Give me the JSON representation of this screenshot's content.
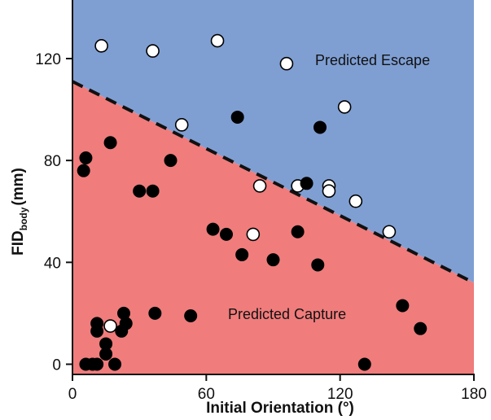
{
  "chart_data": {
    "type": "scatter",
    "title": "",
    "xlabel": "Initial Orientation (°)",
    "ylabel_main": "FID",
    "ylabel_sub": "body",
    "ylabel_unit": "(mm)",
    "xlim": [
      0,
      180
    ],
    "ylim": [
      -4,
      143
    ],
    "xticks": [
      0,
      60,
      120,
      180
    ],
    "yticks": [
      0,
      40,
      80,
      120
    ],
    "grid": false,
    "regions": [
      {
        "name": "Predicted Escape",
        "color": "#7f9fd3"
      },
      {
        "name": "Predicted Capture",
        "color": "#f07c7c"
      }
    ],
    "boundary": {
      "x": [
        0,
        180
      ],
      "y": [
        111,
        32
      ],
      "style": "dashed"
    },
    "series": [
      {
        "marker": "open-circle",
        "points": [
          [
            13,
            125
          ],
          [
            36,
            123
          ],
          [
            65,
            127
          ],
          [
            96,
            118
          ],
          [
            49,
            94
          ],
          [
            122,
            101
          ],
          [
            84,
            70
          ],
          [
            101,
            70
          ],
          [
            115,
            70
          ],
          [
            115,
            68
          ],
          [
            127,
            64
          ],
          [
            142,
            52
          ],
          [
            81,
            51
          ],
          [
            17,
            15
          ]
        ]
      },
      {
        "marker": "filled-circle",
        "points": [
          [
            74,
            97
          ],
          [
            111,
            93
          ],
          [
            17,
            87
          ],
          [
            6,
            81
          ],
          [
            5,
            76
          ],
          [
            44,
            80
          ],
          [
            30,
            68
          ],
          [
            36,
            68
          ],
          [
            105,
            71
          ],
          [
            63,
            53
          ],
          [
            69,
            51
          ],
          [
            101,
            52
          ],
          [
            76,
            43
          ],
          [
            90,
            41
          ],
          [
            110,
            39
          ],
          [
            23,
            20
          ],
          [
            37,
            20
          ],
          [
            53,
            19
          ],
          [
            148,
            23
          ],
          [
            156,
            14
          ],
          [
            11,
            16
          ],
          [
            24,
            16
          ],
          [
            11,
            13
          ],
          [
            22,
            13
          ],
          [
            15,
            8
          ],
          [
            15,
            4
          ],
          [
            6,
            0
          ],
          [
            9,
            0
          ],
          [
            11,
            0
          ],
          [
            19,
            0
          ],
          [
            131,
            0
          ]
        ]
      }
    ]
  }
}
